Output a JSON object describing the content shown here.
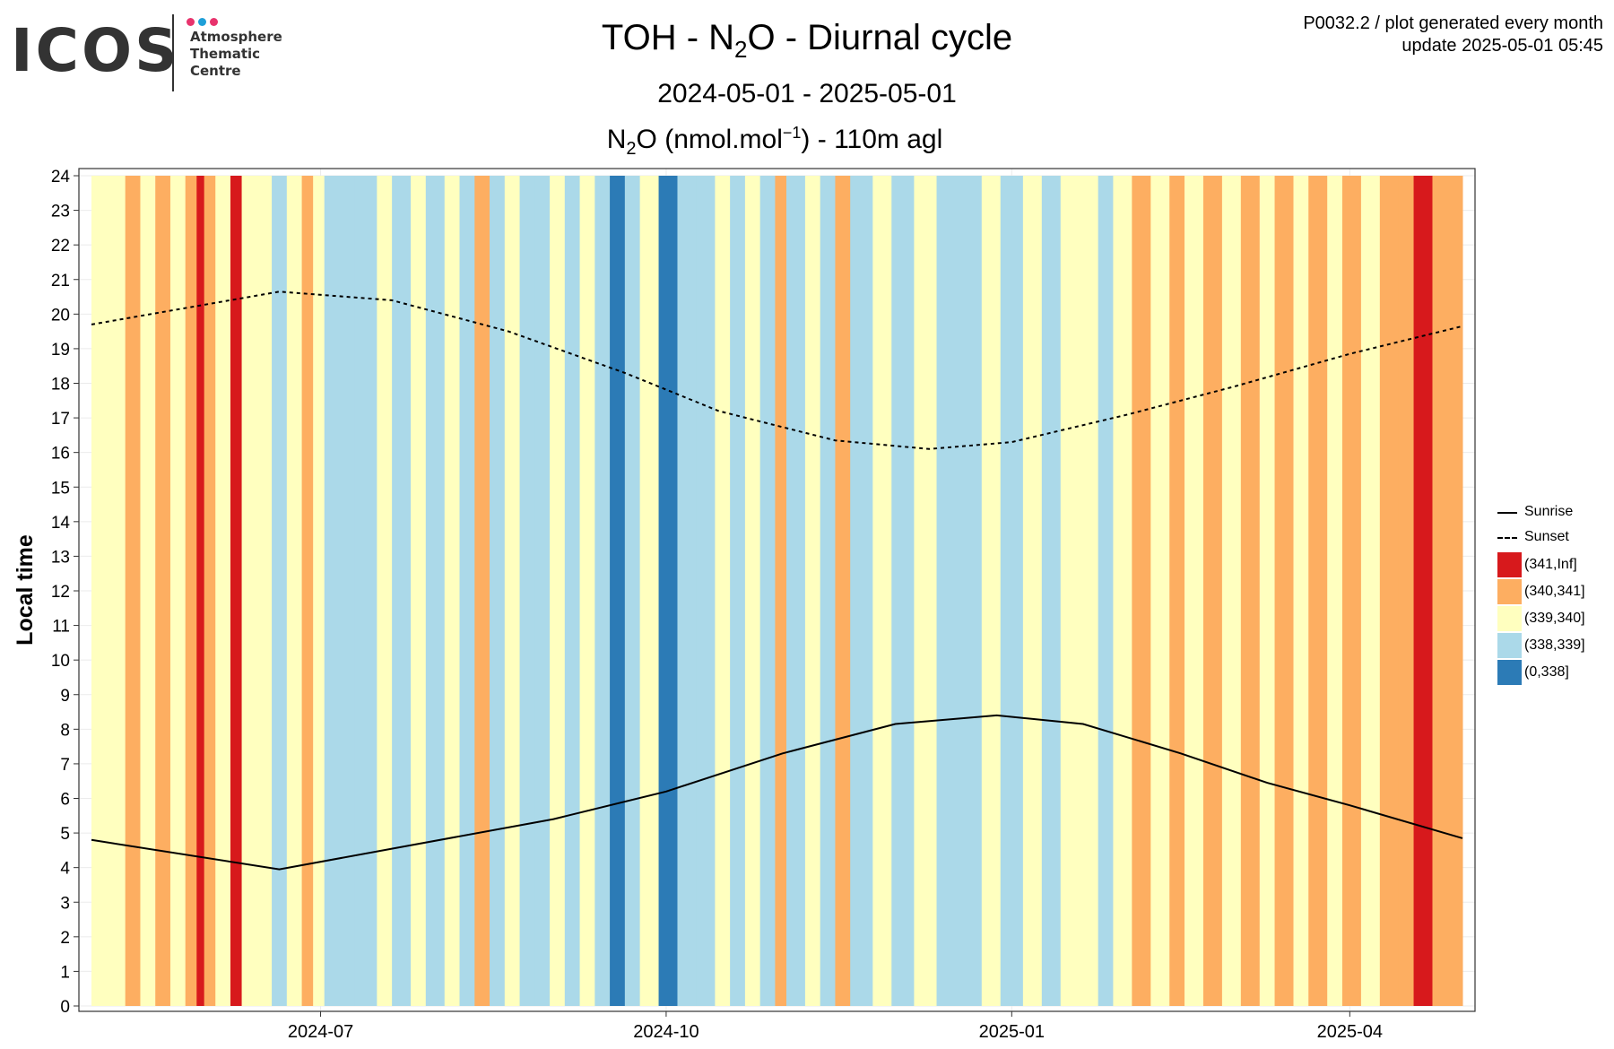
{
  "header": {
    "logo_word": "ICOS",
    "logo_lines": [
      "Atmosphere",
      "Thematic",
      "Centre"
    ],
    "logo_dot_colors": [
      "#e8336d",
      "#1e9fd8",
      "#e8336d"
    ],
    "title_prefix": "TOH - N",
    "title_sub": "2",
    "title_suffix": "O - Diurnal cycle",
    "subtitle": "2024-05-01 - 2025-05-01",
    "subtitle2_prefix": "N",
    "subtitle2_sub": "2",
    "subtitle2_mid": "O (nmol.mol",
    "subtitle2_sup": "−1",
    "subtitle2_suffix": ") - 110m agl",
    "meta_line1": "P0032.2 / plot generated every month",
    "meta_line2": "update  2025-05-01 05:45"
  },
  "chart_data": {
    "type": "heatmap",
    "xlabel": "",
    "ylabel": "Local time",
    "x_range": [
      "2024-05-01",
      "2025-05-01"
    ],
    "y_range": [
      0,
      24
    ],
    "x_ticks": [
      {
        "date": "2024-07-01",
        "label": "2024-07"
      },
      {
        "date": "2024-10-01",
        "label": "2024-10"
      },
      {
        "date": "2025-01-01",
        "label": "2025-01"
      },
      {
        "date": "2025-04-01",
        "label": "2025-04"
      }
    ],
    "y_ticks": [
      "0",
      "1",
      "2",
      "3",
      "4",
      "5",
      "6",
      "7",
      "8",
      "9",
      "10",
      "11",
      "12",
      "13",
      "14",
      "15",
      "16",
      "17",
      "18",
      "19",
      "20",
      "21",
      "22",
      "23",
      "24"
    ],
    "grid": true,
    "legend_position": "right",
    "bins": [
      {
        "label": "(341,Inf]",
        "color": "#d7191c"
      },
      {
        "label": "(340,341]",
        "color": "#fdae61"
      },
      {
        "label": "(339,340]",
        "color": "#ffffbf"
      },
      {
        "label": "(338,339]",
        "color": "#abd9e9"
      },
      {
        "label": "(0,338]",
        "color": "#2c7bb6"
      }
    ],
    "lines": [
      {
        "name": "Sunrise",
        "style": "solid",
        "points": [
          [
            "2024-05-01",
            4.8
          ],
          [
            "2024-06-20",
            3.95
          ],
          [
            "2024-09-01",
            5.4
          ],
          [
            "2024-10-01",
            6.2
          ],
          [
            "2024-11-01",
            7.3
          ],
          [
            "2024-12-01",
            8.15
          ],
          [
            "2024-12-28",
            8.4
          ],
          [
            "2025-01-20",
            8.15
          ],
          [
            "2025-02-15",
            7.3
          ],
          [
            "2025-03-10",
            6.45
          ],
          [
            "2025-04-01",
            5.8
          ],
          [
            "2025-05-01",
            4.85
          ]
        ]
      },
      {
        "name": "Sunset",
        "style": "dashed",
        "points": [
          [
            "2024-05-01",
            19.7
          ],
          [
            "2024-06-20",
            20.65
          ],
          [
            "2024-07-20",
            20.4
          ],
          [
            "2024-08-20",
            19.5
          ],
          [
            "2024-09-20",
            18.3
          ],
          [
            "2024-10-15",
            17.2
          ],
          [
            "2024-11-15",
            16.35
          ],
          [
            "2024-12-10",
            16.1
          ],
          [
            "2025-01-01",
            16.3
          ],
          [
            "2025-02-01",
            17.1
          ],
          [
            "2025-03-01",
            17.9
          ],
          [
            "2025-04-01",
            18.85
          ],
          [
            "2025-05-01",
            19.65
          ]
        ]
      }
    ],
    "columns": [
      {
        "from": "2024-05-01",
        "to": "2024-05-05",
        "bin": 2
      },
      {
        "from": "2024-05-05",
        "to": "2024-05-10",
        "bin": 2
      },
      {
        "from": "2024-05-10",
        "to": "2024-05-14",
        "bin": 1
      },
      {
        "from": "2024-05-14",
        "to": "2024-05-18",
        "bin": 2
      },
      {
        "from": "2024-05-18",
        "to": "2024-05-22",
        "bin": 1
      },
      {
        "from": "2024-05-22",
        "to": "2024-05-26",
        "bin": 2
      },
      {
        "from": "2024-05-26",
        "to": "2024-05-29",
        "bin": 1
      },
      {
        "from": "2024-05-29",
        "to": "2024-05-31",
        "bin": 0
      },
      {
        "from": "2024-05-31",
        "to": "2024-06-03",
        "bin": 1
      },
      {
        "from": "2024-06-03",
        "to": "2024-06-07",
        "bin": 2
      },
      {
        "from": "2024-06-07",
        "to": "2024-06-10",
        "bin": 0
      },
      {
        "from": "2024-06-10",
        "to": "2024-06-14",
        "bin": 2
      },
      {
        "from": "2024-06-14",
        "to": "2024-06-18",
        "bin": 2
      },
      {
        "from": "2024-06-18",
        "to": "2024-06-22",
        "bin": 3
      },
      {
        "from": "2024-06-22",
        "to": "2024-06-26",
        "bin": 2
      },
      {
        "from": "2024-06-26",
        "to": "2024-06-29",
        "bin": 1
      },
      {
        "from": "2024-06-29",
        "to": "2024-07-02",
        "bin": 2
      },
      {
        "from": "2024-07-02",
        "to": "2024-07-10",
        "bin": 3
      },
      {
        "from": "2024-07-10",
        "to": "2024-07-16",
        "bin": 3
      },
      {
        "from": "2024-07-16",
        "to": "2024-07-20",
        "bin": 2
      },
      {
        "from": "2024-07-20",
        "to": "2024-07-25",
        "bin": 3
      },
      {
        "from": "2024-07-25",
        "to": "2024-07-29",
        "bin": 2
      },
      {
        "from": "2024-07-29",
        "to": "2024-08-03",
        "bin": 3
      },
      {
        "from": "2024-08-03",
        "to": "2024-08-07",
        "bin": 2
      },
      {
        "from": "2024-08-07",
        "to": "2024-08-11",
        "bin": 3
      },
      {
        "from": "2024-08-11",
        "to": "2024-08-15",
        "bin": 1
      },
      {
        "from": "2024-08-15",
        "to": "2024-08-19",
        "bin": 3
      },
      {
        "from": "2024-08-19",
        "to": "2024-08-23",
        "bin": 2
      },
      {
        "from": "2024-08-23",
        "to": "2024-08-27",
        "bin": 3
      },
      {
        "from": "2024-08-27",
        "to": "2024-08-31",
        "bin": 3
      },
      {
        "from": "2024-08-31",
        "to": "2024-09-04",
        "bin": 2
      },
      {
        "from": "2024-09-04",
        "to": "2024-09-08",
        "bin": 3
      },
      {
        "from": "2024-09-08",
        "to": "2024-09-12",
        "bin": 2
      },
      {
        "from": "2024-09-12",
        "to": "2024-09-16",
        "bin": 3
      },
      {
        "from": "2024-09-16",
        "to": "2024-09-20",
        "bin": 4
      },
      {
        "from": "2024-09-20",
        "to": "2024-09-24",
        "bin": 3
      },
      {
        "from": "2024-09-24",
        "to": "2024-09-29",
        "bin": 2
      },
      {
        "from": "2024-09-29",
        "to": "2024-10-04",
        "bin": 4
      },
      {
        "from": "2024-10-04",
        "to": "2024-10-09",
        "bin": 3
      },
      {
        "from": "2024-10-09",
        "to": "2024-10-14",
        "bin": 3
      },
      {
        "from": "2024-10-14",
        "to": "2024-10-18",
        "bin": 2
      },
      {
        "from": "2024-10-18",
        "to": "2024-10-22",
        "bin": 3
      },
      {
        "from": "2024-10-22",
        "to": "2024-10-26",
        "bin": 2
      },
      {
        "from": "2024-10-26",
        "to": "2024-10-30",
        "bin": 3
      },
      {
        "from": "2024-10-30",
        "to": "2024-11-02",
        "bin": 1
      },
      {
        "from": "2024-11-02",
        "to": "2024-11-07",
        "bin": 3
      },
      {
        "from": "2024-11-07",
        "to": "2024-11-11",
        "bin": 2
      },
      {
        "from": "2024-11-11",
        "to": "2024-11-15",
        "bin": 3
      },
      {
        "from": "2024-11-15",
        "to": "2024-11-19",
        "bin": 1
      },
      {
        "from": "2024-11-19",
        "to": "2024-11-25",
        "bin": 3
      },
      {
        "from": "2024-11-25",
        "to": "2024-11-30",
        "bin": 2
      },
      {
        "from": "2024-11-30",
        "to": "2024-12-06",
        "bin": 3
      },
      {
        "from": "2024-12-06",
        "to": "2024-12-12",
        "bin": 2
      },
      {
        "from": "2024-12-12",
        "to": "2024-12-18",
        "bin": 3
      },
      {
        "from": "2024-12-18",
        "to": "2024-12-24",
        "bin": 3
      },
      {
        "from": "2024-12-24",
        "to": "2024-12-29",
        "bin": 2
      },
      {
        "from": "2024-12-29",
        "to": "2025-01-04",
        "bin": 3
      },
      {
        "from": "2025-01-04",
        "to": "2025-01-09",
        "bin": 2
      },
      {
        "from": "2025-01-09",
        "to": "2025-01-14",
        "bin": 3
      },
      {
        "from": "2025-01-14",
        "to": "2025-01-19",
        "bin": 2
      },
      {
        "from": "2025-01-19",
        "to": "2025-01-24",
        "bin": 2
      },
      {
        "from": "2025-01-24",
        "to": "2025-01-28",
        "bin": 3
      },
      {
        "from": "2025-01-28",
        "to": "2025-02-02",
        "bin": 2
      },
      {
        "from": "2025-02-02",
        "to": "2025-02-07",
        "bin": 1
      },
      {
        "from": "2025-02-07",
        "to": "2025-02-12",
        "bin": 2
      },
      {
        "from": "2025-02-12",
        "to": "2025-02-16",
        "bin": 1
      },
      {
        "from": "2025-02-16",
        "to": "2025-02-21",
        "bin": 2
      },
      {
        "from": "2025-02-21",
        "to": "2025-02-26",
        "bin": 1
      },
      {
        "from": "2025-02-26",
        "to": "2025-03-03",
        "bin": 2
      },
      {
        "from": "2025-03-03",
        "to": "2025-03-08",
        "bin": 1
      },
      {
        "from": "2025-03-08",
        "to": "2025-03-12",
        "bin": 2
      },
      {
        "from": "2025-03-12",
        "to": "2025-03-17",
        "bin": 1
      },
      {
        "from": "2025-03-17",
        "to": "2025-03-21",
        "bin": 2
      },
      {
        "from": "2025-03-21",
        "to": "2025-03-26",
        "bin": 1
      },
      {
        "from": "2025-03-26",
        "to": "2025-03-30",
        "bin": 2
      },
      {
        "from": "2025-03-30",
        "to": "2025-04-04",
        "bin": 1
      },
      {
        "from": "2025-04-04",
        "to": "2025-04-09",
        "bin": 2
      },
      {
        "from": "2025-04-09",
        "to": "2025-04-14",
        "bin": 1
      },
      {
        "from": "2025-04-14",
        "to": "2025-04-18",
        "bin": 1
      },
      {
        "from": "2025-04-18",
        "to": "2025-04-23",
        "bin": 0
      },
      {
        "from": "2025-04-23",
        "to": "2025-04-27",
        "bin": 1
      },
      {
        "from": "2025-04-27",
        "to": "2025-05-01",
        "bin": 1
      }
    ]
  }
}
